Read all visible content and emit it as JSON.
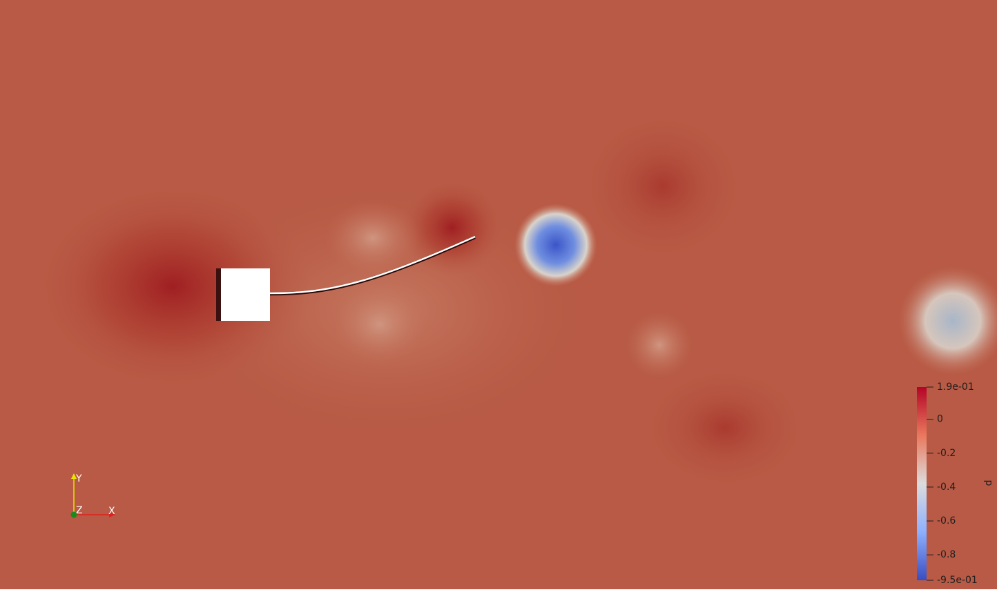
{
  "colorbar": {
    "title": "p",
    "range": [
      -0.95,
      0.19
    ],
    "ticks": [
      {
        "value": 0.19,
        "label": "1.9e-01"
      },
      0,
      -0.2,
      -0.4,
      -0.6,
      -0.8,
      {
        "value": -0.95,
        "label": "-9.5e-01"
      }
    ]
  },
  "axes_triad": {
    "x": "X",
    "y": "Y",
    "z": "Z"
  }
}
